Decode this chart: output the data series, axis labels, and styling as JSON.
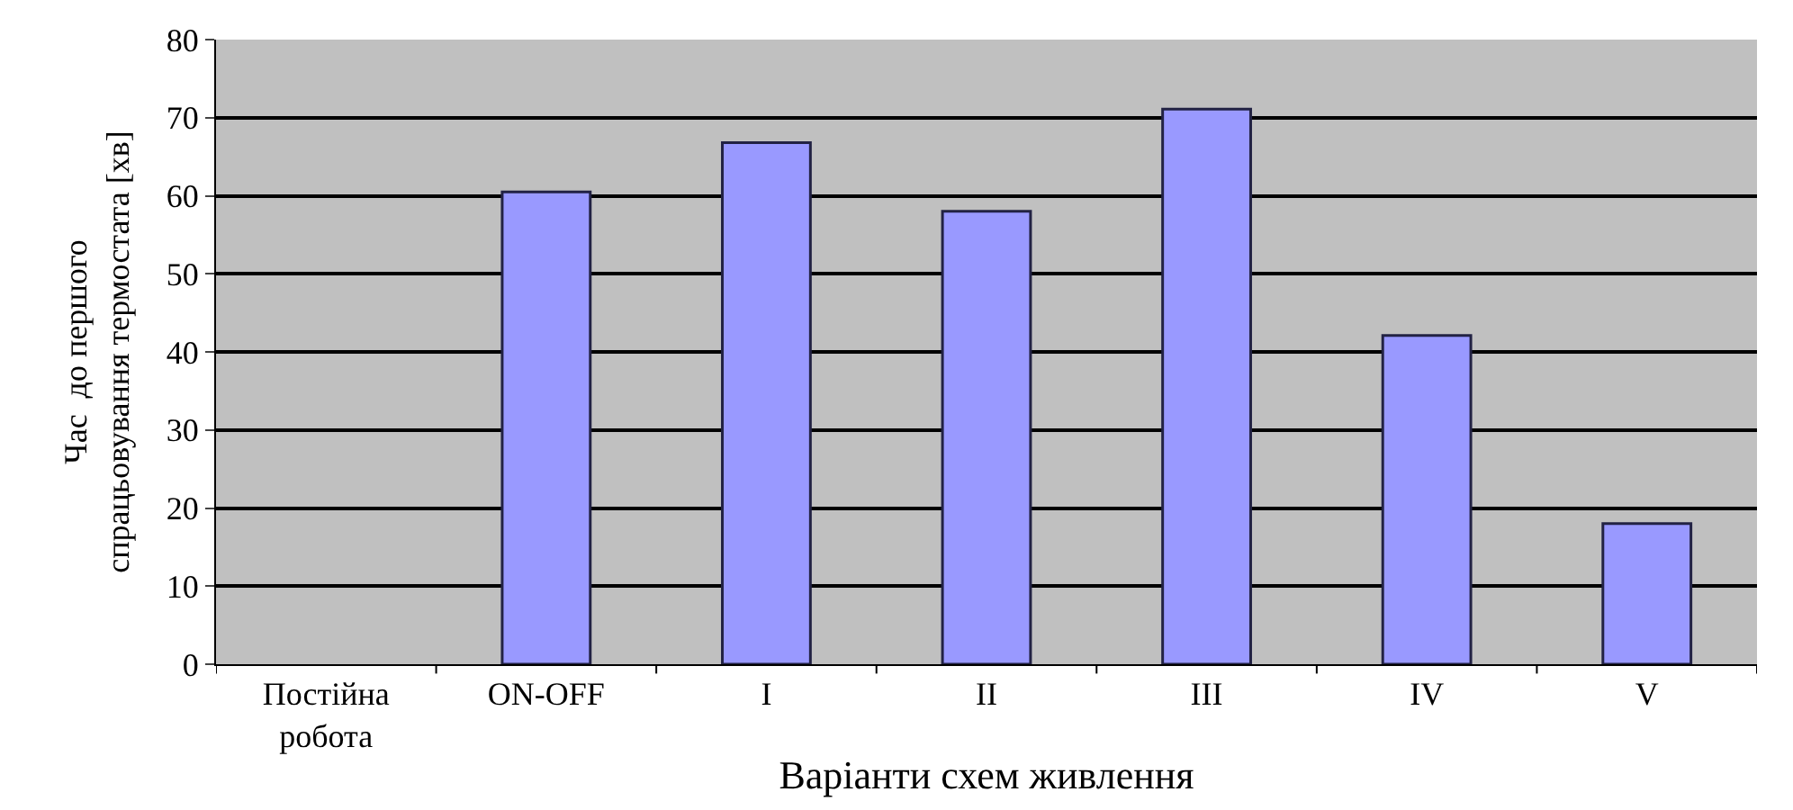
{
  "chart_data": {
    "type": "bar",
    "xlabel": "Варіанти схем живлення",
    "ylabel": "Час  до першого\nспрацьовування термостата [хв]",
    "categories": [
      "Постійна\nробота",
      "ON-OFF",
      "I",
      "II",
      "III",
      "IV",
      "V"
    ],
    "values": [
      null,
      60.5,
      66.8,
      58,
      71.1,
      42.1,
      18
    ],
    "color": "#9999ff",
    "ylim": [
      0,
      80
    ],
    "yticks": [
      0,
      10,
      20,
      30,
      40,
      50,
      60,
      70,
      80
    ],
    "grid": "y"
  }
}
